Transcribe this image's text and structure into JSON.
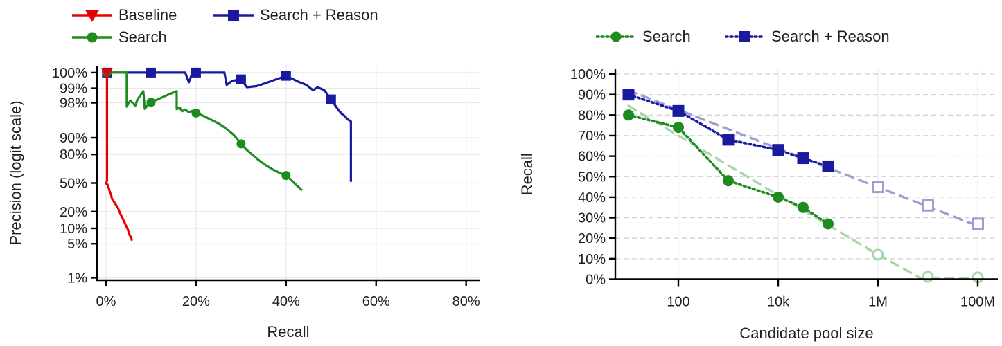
{
  "figure": {
    "background": "#ffffff",
    "text_color": "#1f1f1f"
  },
  "colors": {
    "baseline_red": "#e60000",
    "search_green": "#1f8b1f",
    "reason_blue": "#1a1aa0",
    "trend_blue_light": "#9e9ed6",
    "trend_green_light": "#a8d6a8",
    "grid_left": "#e9e9e9",
    "grid_dashed": "#d2d2d2",
    "grid_vertical": "#ededed",
    "axis_black": "#000000"
  },
  "chart_data": [
    {
      "type": "line",
      "title": "",
      "xlabel": "Recall",
      "ylabel": "Precision (logit scale)",
      "y_scale": "logit",
      "xlim": [
        -2,
        83
      ],
      "x_ticks": [
        {
          "label": "0%",
          "value": 0
        },
        {
          "label": "20%",
          "value": 20
        },
        {
          "label": "40%",
          "value": 40
        },
        {
          "label": "60%",
          "value": 60
        },
        {
          "label": "80%",
          "value": 80
        }
      ],
      "y_ticks": [
        {
          "label": "100%",
          "value": 100
        },
        {
          "label": "99%",
          "value": 99
        },
        {
          "label": "98%",
          "value": 98
        },
        {
          "label": "90%",
          "value": 90
        },
        {
          "label": "80%",
          "value": 80
        },
        {
          "label": "50%",
          "value": 50
        },
        {
          "label": "20%",
          "value": 20
        },
        {
          "label": "10%",
          "value": 10
        },
        {
          "label": "5%",
          "value": 5
        },
        {
          "label": "1%",
          "value": 1
        }
      ],
      "legend": [
        {
          "label": "Baseline",
          "color": "#e60000",
          "marker": "triangle-down",
          "line": "solid"
        },
        {
          "label": "Search",
          "color": "#1f8b1f",
          "marker": "circle",
          "line": "solid"
        },
        {
          "label": "Search + Reason",
          "color": "#1a1aa0",
          "marker": "square",
          "line": "solid"
        }
      ],
      "series": [
        {
          "name": "Search + Reason",
          "color": "#1a1aa0",
          "marker": "square",
          "line": [
            [
              0.2,
              100
            ],
            [
              10.5,
              100
            ],
            [
              11.2,
              99.7
            ],
            [
              12,
              100
            ],
            [
              17.6,
              100
            ],
            [
              18.4,
              99.25
            ],
            [
              19.2,
              100
            ],
            [
              20.8,
              100
            ],
            [
              21.5,
              99.8
            ],
            [
              26.3,
              99.8
            ],
            [
              26.8,
              99.15
            ],
            [
              28,
              99.3
            ],
            [
              30,
              99.35
            ],
            [
              31.3,
              99.05
            ],
            [
              33.5,
              99.1
            ],
            [
              36,
              99.25
            ],
            [
              40,
              99.45
            ],
            [
              43,
              99.25
            ],
            [
              44.5,
              99.15
            ],
            [
              46,
              98.9
            ],
            [
              47,
              99.05
            ],
            [
              48.5,
              98.9
            ],
            [
              50,
              98.3
            ],
            [
              50.8,
              97.8
            ],
            [
              51.6,
              97.2
            ],
            [
              52.4,
              96.6
            ],
            [
              53.1,
              96.2
            ],
            [
              53.6,
              95.7
            ],
            [
              54,
              95.45
            ],
            [
              54.4,
              95.2
            ],
            [
              54.4,
              52.5
            ]
          ],
          "markers": [
            [
              0.2,
              100
            ],
            [
              10,
              100
            ],
            [
              20,
              100
            ],
            [
              30,
              99.35
            ],
            [
              40,
              99.45
            ],
            [
              50,
              98.3
            ]
          ]
        },
        {
          "name": "Search",
          "color": "#1f8b1f",
          "marker": "circle",
          "line": [
            [
              0.2,
              100
            ],
            [
              4.6,
              100
            ],
            [
              4.6,
              97.6
            ],
            [
              5.4,
              98.2
            ],
            [
              6.5,
              97.7
            ],
            [
              7,
              98.3
            ],
            [
              8.3,
              98.85
            ],
            [
              8.6,
              97.35
            ],
            [
              9.3,
              97.75
            ],
            [
              10,
              98.05
            ],
            [
              11.5,
              98.3
            ],
            [
              13.5,
              98.6
            ],
            [
              15.7,
              98.85
            ],
            [
              15.7,
              97.3
            ],
            [
              16.4,
              97.45
            ],
            [
              16.9,
              97.0
            ],
            [
              17.6,
              97.25
            ],
            [
              18.3,
              96.9
            ],
            [
              19.2,
              97.05
            ],
            [
              20,
              96.75
            ],
            [
              21,
              96.5
            ],
            [
              22.1,
              96.1
            ],
            [
              23.7,
              95.4
            ],
            [
              25.2,
              94.6
            ],
            [
              26.8,
              93.2
            ],
            [
              28.3,
              91.3
            ],
            [
              29.2,
              89.3
            ],
            [
              30,
              87
            ],
            [
              31.2,
              83.5
            ],
            [
              32.6,
              79.5
            ],
            [
              34,
              75
            ],
            [
              35.6,
              70
            ],
            [
              37.2,
              65.5
            ],
            [
              38.6,
              62
            ],
            [
              40,
              59
            ],
            [
              41,
              54.5
            ],
            [
              42,
              49
            ],
            [
              43,
              44
            ],
            [
              43.4,
              42
            ]
          ],
          "markers": [
            [
              0.2,
              100
            ],
            [
              10,
              98.05
            ],
            [
              20,
              96.75
            ],
            [
              30,
              87
            ],
            [
              40,
              59
            ]
          ]
        },
        {
          "name": "Baseline",
          "color": "#e60000",
          "marker": "triangle-down",
          "line": [
            [
              0.22,
              100
            ],
            [
              0.22,
              53
            ],
            [
              0.1,
              51
            ],
            [
              0.1,
              49
            ],
            [
              0.35,
              48
            ],
            [
              0.5,
              46
            ],
            [
              0.7,
              42
            ],
            [
              1.0,
              37.5
            ],
            [
              1.15,
              36
            ],
            [
              1.3,
              32
            ],
            [
              1.6,
              30
            ],
            [
              2.0,
              27
            ],
            [
              2.6,
              23.5
            ],
            [
              3.1,
              19
            ],
            [
              3.65,
              15.5
            ],
            [
              4.1,
              13
            ],
            [
              4.4,
              11.4
            ],
            [
              4.85,
              9.5
            ],
            [
              5.2,
              7.6
            ],
            [
              5.5,
              6.8
            ],
            [
              5.7,
              6
            ]
          ],
          "markers": [
            [
              0.22,
              100
            ]
          ]
        }
      ]
    },
    {
      "type": "line",
      "title": "",
      "xlabel": "Candidate pool size",
      "ylabel": "Recall",
      "x_scale": "log",
      "ylim": [
        0,
        100
      ],
      "x_ticks": [
        {
          "label": "100",
          "value": 100
        },
        {
          "label": "10k",
          "value": 10000
        },
        {
          "label": "1M",
          "value": 1000000
        },
        {
          "label": "100M",
          "value": 100000000
        }
      ],
      "y_ticks": [
        {
          "label": "0%",
          "value": 0
        },
        {
          "label": "10%",
          "value": 10
        },
        {
          "label": "20%",
          "value": 20
        },
        {
          "label": "30%",
          "value": 30
        },
        {
          "label": "40%",
          "value": 40
        },
        {
          "label": "50%",
          "value": 50
        },
        {
          "label": "60%",
          "value": 60
        },
        {
          "label": "70%",
          "value": 70
        },
        {
          "label": "80%",
          "value": 80
        },
        {
          "label": "90%",
          "value": 90
        },
        {
          "label": "100%",
          "value": 100
        }
      ],
      "legend": [
        {
          "label": "Search",
          "color": "#1f8b1f",
          "marker": "circle",
          "line": "dotted"
        },
        {
          "label": "Search + Reason",
          "color": "#1a1aa0",
          "marker": "square",
          "line": "dotted"
        }
      ],
      "series": [
        {
          "name": "Search + Reason",
          "color": "#1a1aa0",
          "marker": "square",
          "trend_color": "#9e9ed6",
          "trend": [
            [
              10,
              92
            ],
            [
              100000000,
              26
            ]
          ],
          "solid_x": [
            10,
            100,
            1000,
            10000,
            31623,
            100000
          ],
          "solid_y": [
            90,
            82,
            68,
            63,
            59,
            55
          ],
          "open_x": [
            1000000,
            10000000,
            100000000
          ],
          "open_y": [
            45,
            36,
            27
          ]
        },
        {
          "name": "Search",
          "color": "#1f8b1f",
          "marker": "circle",
          "trend_color": "#a8d6a8",
          "trend": [
            [
              10,
              84.5
            ],
            [
              1000000,
              12
            ],
            [
              7079458,
              0.6
            ],
            [
              100000000,
              0.4
            ]
          ],
          "solid_x": [
            10,
            100,
            1000,
            10000,
            31623,
            100000
          ],
          "solid_y": [
            80,
            74,
            48,
            40,
            35,
            27
          ],
          "open_x": [
            1000000,
            10000000,
            100000000
          ],
          "open_y": [
            12,
            1.2,
            0.9
          ]
        }
      ]
    }
  ]
}
